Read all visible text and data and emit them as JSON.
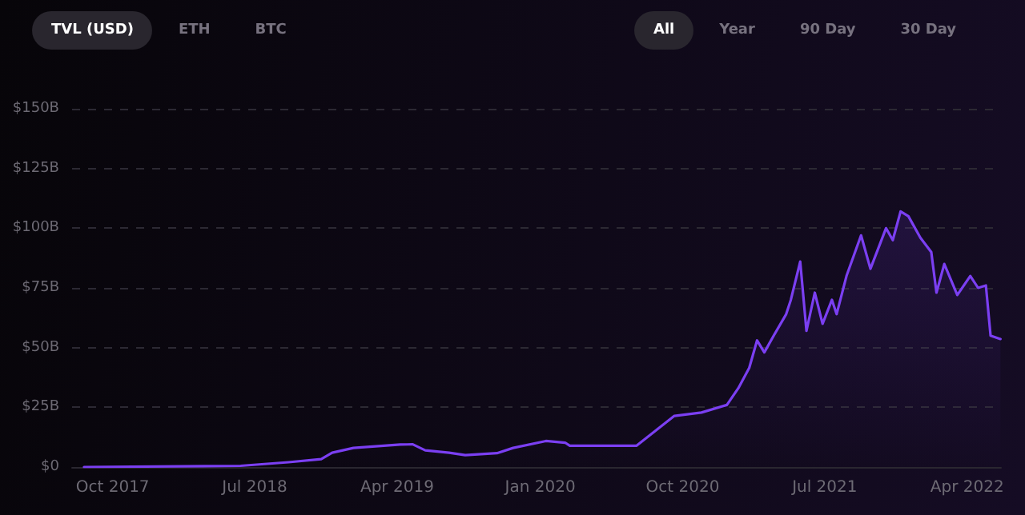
{
  "chart_data": {
    "type": "area",
    "annotations": [
      "TVL (USD)",
      "ETH",
      "BTC",
      "All",
      "Year",
      "90 Day",
      "30 Day"
    ],
    "x": [
      "2017-08-07",
      "2018-06-04",
      "2018-09-04",
      "2018-11-06",
      "2018-11-27",
      "2019-01-07",
      "2019-04-07",
      "2019-05-01",
      "2019-05-25",
      "2019-07-10",
      "2019-08-10",
      "2019-10-10",
      "2019-11-10",
      "2020-01-12",
      "2020-02-18",
      "2020-02-27",
      "2020-07-04",
      "2020-09-15",
      "2020-11-06",
      "2020-12-25",
      "2021-01-16",
      "2021-02-06",
      "2021-02-21",
      "2021-03-07",
      "2021-03-25",
      "2021-04-18",
      "2021-04-27",
      "2021-05-15",
      "2021-05-27",
      "2021-06-12",
      "2021-06-27",
      "2021-07-15",
      "2021-07-24",
      "2021-08-12",
      "2021-09-09",
      "2021-09-27",
      "2021-10-27",
      "2021-11-09",
      "2021-11-24",
      "2021-12-09",
      "2022-01-01",
      "2022-01-22",
      "2022-02-01",
      "2022-02-16",
      "2022-03-13",
      "2022-04-07",
      "2022-04-22",
      "2022-05-07",
      "2022-05-16",
      "2022-06-04"
    ],
    "series": [
      {
        "color": "#7b3ff2",
        "values": [
          0,
          0.5,
          2,
          3.3,
          6,
          8,
          9.4,
          9.5,
          7,
          6,
          5,
          5.8,
          8,
          10.9,
          10.2,
          8.9,
          8.9,
          21.4,
          22.8,
          26,
          33,
          41.5,
          53,
          48,
          55,
          64,
          70,
          86,
          57,
          73,
          60,
          70,
          64,
          80,
          97,
          83,
          100,
          95,
          107,
          105,
          96,
          90,
          73,
          85,
          72,
          80,
          75,
          76,
          55,
          53.6
        ]
      }
    ],
    "xlim": [
      "2017-07-15",
      "2022-06-05"
    ],
    "xticks": [
      {
        "value": "2017-10-01",
        "label": "Oct 2017"
      },
      {
        "value": "2018-07-01",
        "label": "Jul 2018"
      },
      {
        "value": "2019-04-01",
        "label": "Apr 2019"
      },
      {
        "value": "2020-01-01",
        "label": "Jan 2020"
      },
      {
        "value": "2020-10-01",
        "label": "Oct 2020"
      },
      {
        "value": "2021-07-01",
        "label": "Jul 2021"
      },
      {
        "value": "2022-04-01",
        "label": "Apr 2022"
      }
    ],
    "ylim": [
      0,
      150
    ],
    "yticks": [
      {
        "value": 0,
        "label": "$0"
      },
      {
        "value": 25,
        "label": "$25B"
      },
      {
        "value": 50,
        "label": "$50B"
      },
      {
        "value": 75,
        "label": "$75B"
      },
      {
        "value": 100,
        "label": "$100B"
      },
      {
        "value": 125,
        "label": "$125B"
      },
      {
        "value": 150,
        "label": "$150B"
      }
    ],
    "grid": "y",
    "marker": "none",
    "line_style": "solid"
  }
}
